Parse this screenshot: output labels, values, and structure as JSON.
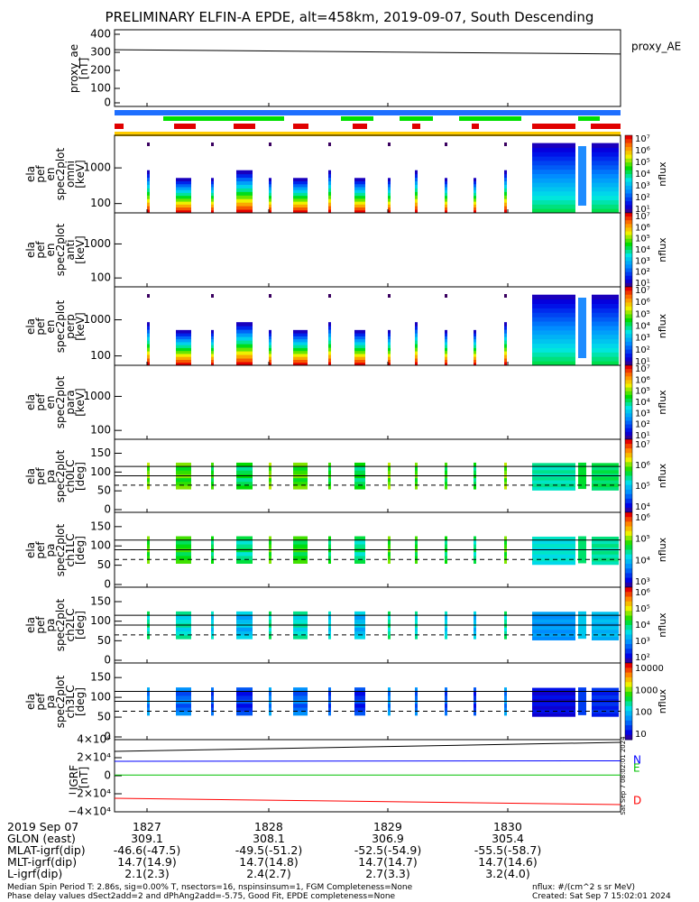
{
  "title": "PRELIMINARY ELFIN-A EPDE, alt=458km, 2019-09-07, South Descending",
  "panels": [
    {
      "id": "ae",
      "ylabel_lines": [
        "proxy_ae",
        "[nT]"
      ],
      "legend": "proxy_AE",
      "ticks": [
        "400",
        "300",
        "200",
        "100",
        "0"
      ]
    },
    {
      "id": "omni",
      "ylabel_lines": [
        "ela",
        "pef",
        "en",
        "spec2plot",
        "omni",
        "[keV]"
      ],
      "ticks": [
        "1000",
        "100"
      ],
      "cb_ticks": [
        "10⁷",
        "10⁶",
        "10⁵",
        "10⁴",
        "10³",
        "10²",
        "10¹"
      ],
      "cb_label": "nflux"
    },
    {
      "id": "anti",
      "ylabel_lines": [
        "ela",
        "pef",
        "en",
        "spec2plot",
        "anti",
        "[keV]"
      ],
      "ticks": [
        "1000",
        "100"
      ],
      "cb_ticks": [
        "10⁷",
        "10⁶",
        "10⁵",
        "10⁴",
        "10³",
        "10²",
        "10¹"
      ],
      "cb_label": "nflux"
    },
    {
      "id": "perp",
      "ylabel_lines": [
        "ela",
        "pef",
        "en",
        "spec2plot",
        "perp",
        "[keV]"
      ],
      "ticks": [
        "1000",
        "100"
      ],
      "cb_ticks": [
        "10⁷",
        "10⁶",
        "10⁵",
        "10⁴",
        "10³",
        "10²",
        "10¹"
      ],
      "cb_label": "nflux"
    },
    {
      "id": "para",
      "ylabel_lines": [
        "ela",
        "pef",
        "en",
        "spec2plot",
        "para",
        "[keV]"
      ],
      "ticks": [
        "1000",
        "100"
      ],
      "cb_ticks": [
        "10⁷",
        "10⁶",
        "10⁵",
        "10⁴",
        "10³",
        "10²",
        "10¹"
      ],
      "cb_label": "nflux"
    },
    {
      "id": "ch0",
      "ylabel_lines": [
        "ela",
        "pef",
        "pa",
        "spec2plot",
        "ch0LC",
        "[deg]"
      ],
      "ticks": [
        "150",
        "100",
        "50",
        "0"
      ],
      "cb_ticks": [
        "10⁷",
        "10⁶",
        "10⁵",
        "10⁴"
      ],
      "cb_label": "nflux"
    },
    {
      "id": "ch1",
      "ylabel_lines": [
        "ela",
        "pef",
        "pa",
        "spec2plot",
        "ch1LC",
        "[deg]"
      ],
      "ticks": [
        "150",
        "100",
        "50",
        "0"
      ],
      "cb_ticks": [
        "10⁶",
        "10⁵",
        "10⁴",
        "10³"
      ],
      "cb_label": "nflux"
    },
    {
      "id": "ch2",
      "ylabel_lines": [
        "ela",
        "pef",
        "pa",
        "spec2plot",
        "ch2LC",
        "[deg]"
      ],
      "ticks": [
        "150",
        "100",
        "50",
        "0"
      ],
      "cb_ticks": [
        "10⁶",
        "10⁵",
        "10⁴",
        "10³",
        "10²"
      ],
      "cb_label": "nflux"
    },
    {
      "id": "ch3",
      "ylabel_lines": [
        "ela",
        "pef",
        "pa",
        "spec2plot",
        "ch3LC",
        "[deg]"
      ],
      "ticks": [
        "150",
        "100",
        "50",
        "0"
      ],
      "cb_ticks": [
        "10000",
        "1000",
        "100",
        "10"
      ],
      "cb_label": "nflux"
    },
    {
      "id": "bfield",
      "ylabel_lines": [
        "IGRF",
        "[nT]"
      ],
      "ticks": [
        "4×10⁴",
        "2×10⁴",
        "0",
        "−2×10⁴",
        "−4×10⁴"
      ],
      "legend": [
        "N",
        "E",
        "D"
      ]
    }
  ],
  "footer": {
    "date": "2019 Sep 07",
    "rows": [
      {
        "label": "GLON (east)",
        "values": [
          "309.1",
          "308.1",
          "306.9",
          "305.4"
        ]
      },
      {
        "label": "MLAT-igrf(dip)",
        "values": [
          "-46.6(-47.5)",
          "-49.5(-51.2)",
          "-52.5(-54.9)",
          "-55.5(-58.7)"
        ]
      },
      {
        "label": "MLT-igrf(dip)",
        "values": [
          "14.7(14.9)",
          "14.7(14.8)",
          "14.7(14.7)",
          "14.7(14.6)"
        ]
      },
      {
        "label": "L-igrf(dip)",
        "values": [
          "2.1(2.3)",
          "2.4(2.7)",
          "2.7(3.3)",
          "3.2(4.0)"
        ]
      }
    ],
    "times": [
      "1827",
      "1828",
      "1829",
      "1830"
    ],
    "note1": "Median Spin Period T: 2.86s, sig=0.00% T, nsectors=16, nspinsinsum=1, FGM Completeness=None",
    "note2": "Phase delay values dSect2add=2 and dPhAng2add=-5.75, Good Fit, EPDE completeness=None",
    "units": "nflux: #/(cm^2 s sr MeV)",
    "created": "Created: Sat Sep  7 15:02:01 2024",
    "stamp": "Sat Sep  7 08:02:01 2024"
  },
  "colors": {
    "n": "#0000ff",
    "e": "#00c000",
    "d": "#ff0000",
    "blue_bar": "#1e6fff",
    "green_bar": "#00e000",
    "red_bar": "#e00000",
    "yellow_bar": "#ffcc00"
  },
  "chart_data": {
    "type": "heatmap",
    "title": "PRELIMINARY ELFIN-A EPDE, alt=458km, 2019-09-07, South Descending",
    "x_ticks": [
      "1827",
      "1828",
      "1829",
      "1830"
    ],
    "proxy_ae": {
      "ylim": [
        0,
        400
      ],
      "values_start": 310,
      "values_end": 285
    },
    "energy_ylim_keV": [
      60,
      5000
    ],
    "pitch_ylim_deg": [
      0,
      180
    ],
    "pitch_lines_deg": [
      90,
      115
    ],
    "loss_cone_deg": 65,
    "igrf": {
      "ylim": [
        -40000,
        40000
      ],
      "series": [
        {
          "name": "N",
          "start": 16000,
          "end": 16500
        },
        {
          "name": "E",
          "start": 700,
          "end": 700
        },
        {
          "name": "D",
          "start": -25000,
          "end": -32000
        },
        {
          "name": "",
          "start": 27000,
          "end": 37000
        }
      ]
    }
  }
}
